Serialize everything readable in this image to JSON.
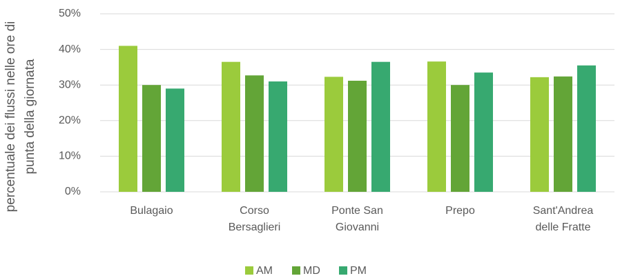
{
  "chart_data": {
    "type": "bar",
    "y_label": [
      "percentuale dei flussi nelle ore di",
      "punta della giornata"
    ],
    "categories": [
      "Bulagaio",
      "Corso Bersaglieri",
      "Ponte San Giovanni",
      "Prepo",
      "Sant'Andrea delle Fratte"
    ],
    "series": [
      {
        "name": "AM",
        "color": "#9bcb3c",
        "values": [
          41,
          36.5,
          32.3,
          36.6,
          32.2
        ]
      },
      {
        "name": "MD",
        "color": "#63a537",
        "values": [
          30,
          32.7,
          31.2,
          30,
          32.4
        ]
      },
      {
        "name": "PM",
        "color": "#37a970",
        "values": [
          29,
          31,
          36.5,
          33.5,
          35.5
        ]
      }
    ],
    "ylim": [
      0,
      50
    ],
    "yticks": [
      {
        "value": 0,
        "label": "0%"
      },
      {
        "value": 10,
        "label": "10%"
      },
      {
        "value": 20,
        "label": "20%"
      },
      {
        "value": 30,
        "label": "30%"
      },
      {
        "value": 40,
        "label": "40%"
      },
      {
        "value": 50,
        "label": "50%"
      }
    ],
    "grid": true,
    "legend": "bottom"
  }
}
